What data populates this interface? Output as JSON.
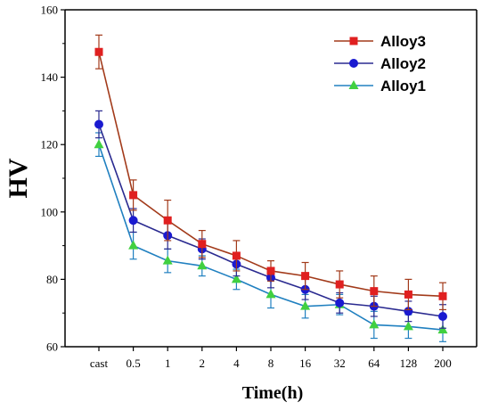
{
  "chart_data": {
    "type": "line",
    "xlabel": "Time(h)",
    "ylabel": "HV",
    "categories": [
      "cast",
      "0.5",
      "1",
      "2",
      "4",
      "8",
      "16",
      "32",
      "64",
      "128",
      "200"
    ],
    "yticks": [
      "60",
      "80",
      "100",
      "120",
      "140",
      "160"
    ],
    "ylim": [
      60,
      160
    ],
    "grid": false,
    "legend_position": "top-right",
    "series": [
      {
        "name": "Alloy3",
        "marker": "square",
        "color": "#e02020",
        "line_color": "#a23a1a",
        "values": [
          147.5,
          105,
          97.5,
          90.5,
          87,
          82.5,
          81,
          78.5,
          76.5,
          75.5,
          75
        ],
        "errors": [
          5,
          4.5,
          6,
          4,
          4.5,
          3,
          4,
          4,
          4.5,
          4.5,
          4
        ]
      },
      {
        "name": "Alloy2",
        "marker": "circle",
        "color": "#1a1ad0",
        "line_color": "#2a2a90",
        "values": [
          126,
          97.5,
          93,
          89,
          84.5,
          80.5,
          77,
          73,
          72,
          70.5,
          69
        ],
        "errors": [
          4,
          3.5,
          4,
          3,
          3.5,
          3,
          3,
          3,
          3,
          3,
          3.5
        ]
      },
      {
        "name": "Alloy1",
        "marker": "triangle",
        "color": "#40d040",
        "line_color": "#2080c0",
        "values": [
          120,
          90,
          85.5,
          84,
          80,
          75.5,
          72,
          72.5,
          66.5,
          66,
          65
        ],
        "errors": [
          3.5,
          4,
          3.5,
          3,
          3,
          4,
          3.5,
          3,
          4,
          3.5,
          3.5
        ]
      }
    ]
  }
}
